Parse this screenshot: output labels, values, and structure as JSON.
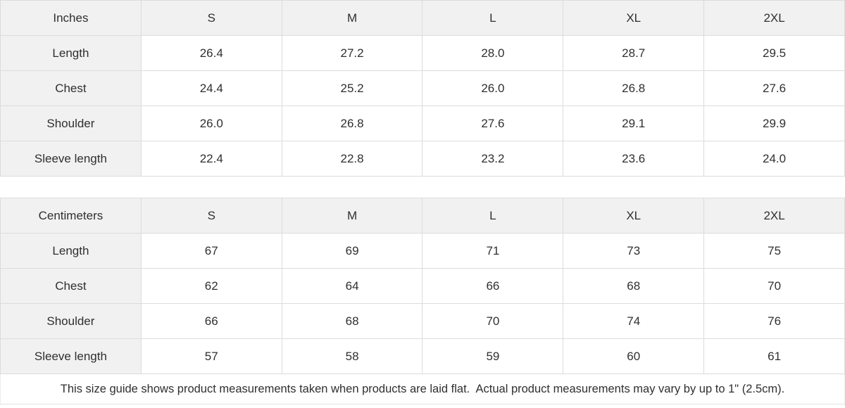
{
  "size_guide": {
    "tables": [
      {
        "unit_label": "Inches",
        "sizes": [
          "S",
          "M",
          "L",
          "XL",
          "2XL"
        ],
        "rows": [
          {
            "label": "Length",
            "values": [
              "26.4",
              "27.2",
              "28.0",
              "28.7",
              "29.5"
            ]
          },
          {
            "label": "Chest",
            "values": [
              "24.4",
              "25.2",
              "26.0",
              "26.8",
              "27.6"
            ]
          },
          {
            "label": "Shoulder",
            "values": [
              "26.0",
              "26.8",
              "27.6",
              "29.1",
              "29.9"
            ]
          },
          {
            "label": "Sleeve length",
            "values": [
              "22.4",
              "22.8",
              "23.2",
              "23.6",
              "24.0"
            ]
          }
        ]
      },
      {
        "unit_label": "Centimeters",
        "sizes": [
          "S",
          "M",
          "L",
          "XL",
          "2XL"
        ],
        "rows": [
          {
            "label": "Length",
            "values": [
              "67",
              "69",
              "71",
              "73",
              "75"
            ]
          },
          {
            "label": "Chest",
            "values": [
              "62",
              "64",
              "66",
              "68",
              "70"
            ]
          },
          {
            "label": "Shoulder",
            "values": [
              "66",
              "68",
              "70",
              "74",
              "76"
            ]
          },
          {
            "label": "Sleeve length",
            "values": [
              "57",
              "58",
              "59",
              "60",
              "61"
            ]
          }
        ]
      }
    ],
    "note": "This size guide shows product measurements taken when products are laid flat.  Actual product measurements may vary by up to 1\" (2.5cm).",
    "colors": {
      "header_bg": "#f1f1f1",
      "border": "#dcdcdc",
      "text": "#2f2f2f"
    }
  }
}
